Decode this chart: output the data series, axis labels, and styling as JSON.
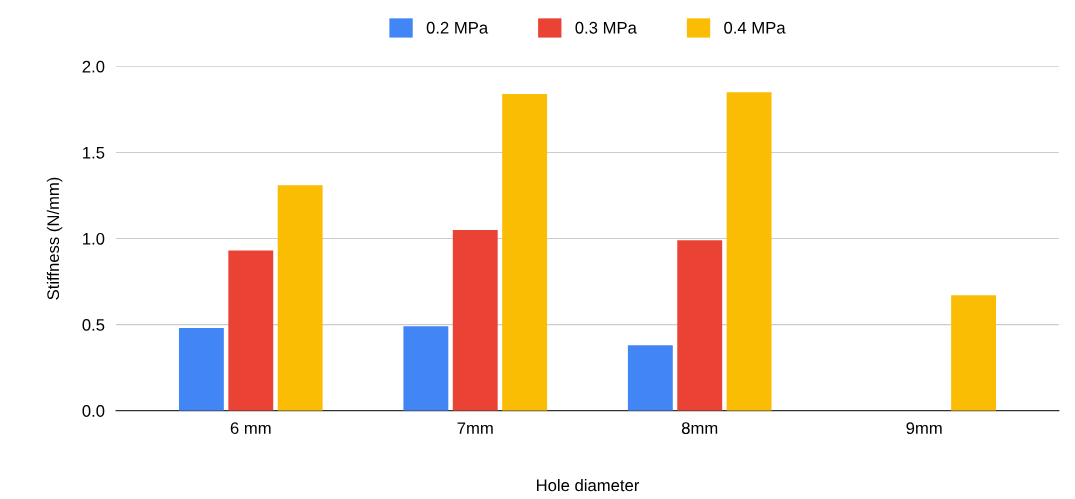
{
  "chart_data": {
    "type": "bar",
    "xlabel": "Hole diameter",
    "ylabel": "Stiffness (N/mm)",
    "categories": [
      "6 mm",
      "7mm",
      "8mm",
      "9mm"
    ],
    "series": [
      {
        "name": "0.2 MPa",
        "color": "#4285f4",
        "values": [
          0.48,
          0.49,
          0.38,
          null
        ]
      },
      {
        "name": "0.3 MPa",
        "color": "#ea4335",
        "values": [
          0.93,
          1.05,
          0.99,
          0
        ]
      },
      {
        "name": "0.4 MPa",
        "color": "#fbbc04",
        "values": [
          1.31,
          1.84,
          1.85,
          0.67
        ]
      }
    ],
    "ylim": [
      0,
      2.0
    ],
    "yticks": [
      {
        "value": 0,
        "label": "0.0"
      },
      {
        "value": 0.5,
        "label": "0.5"
      },
      {
        "value": 1.0,
        "label": "1.0"
      },
      {
        "value": 1.5,
        "label": "1.5"
      },
      {
        "value": 2.0,
        "label": "2.0"
      }
    ],
    "grid": "y",
    "legend": "top"
  }
}
